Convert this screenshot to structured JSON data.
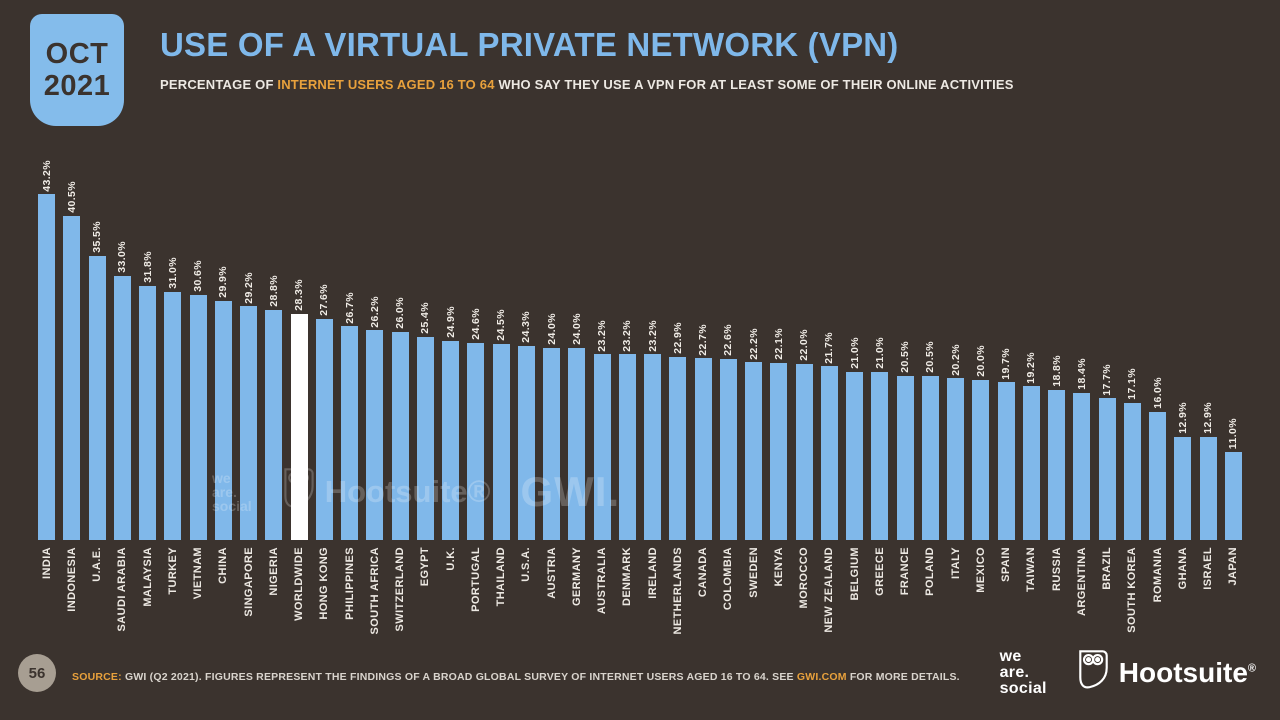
{
  "header": {
    "date_line1": "OCT",
    "date_line2": "2021",
    "title": "USE OF A VIRTUAL PRIVATE NETWORK (VPN)",
    "subtitle_prefix": "PERCENTAGE OF ",
    "subtitle_highlight": "INTERNET USERS AGED 16 TO 64",
    "subtitle_suffix": " WHO SAY THEY USE A VPN FOR AT LEAST SOME OF THEIR ONLINE ACTIVITIES"
  },
  "chart_data": {
    "type": "bar",
    "title": "USE OF A VIRTUAL PRIVATE NETWORK (VPN)",
    "xlabel": "",
    "ylabel": "Percentage of internet users aged 16 to 64",
    "ylim": [
      0,
      45
    ],
    "grid": false,
    "legend": "none",
    "value_suffix": "%",
    "bar_color": "#80B8EA",
    "highlight_category": "WORLDWIDE",
    "highlight_color": "#FFFFFF",
    "categories": [
      "INDIA",
      "INDONESIA",
      "U.A.E.",
      "SAUDI ARABIA",
      "MALAYSIA",
      "TURKEY",
      "VIETNAM",
      "CHINA",
      "SINGAPORE",
      "NIGERIA",
      "WORLDWIDE",
      "HONG KONG",
      "PHILIPPINES",
      "SOUTH AFRICA",
      "SWITZERLAND",
      "EGYPT",
      "U.K.",
      "PORTUGAL",
      "THAILAND",
      "U.S.A.",
      "AUSTRIA",
      "GERMANY",
      "AUSTRALIA",
      "DENMARK",
      "IRELAND",
      "NETHERLANDS",
      "CANADA",
      "COLOMBIA",
      "SWEDEN",
      "KENYA",
      "MOROCCO",
      "NEW ZEALAND",
      "BELGIUM",
      "GREECE",
      "FRANCE",
      "POLAND",
      "ITALY",
      "MEXICO",
      "SPAIN",
      "TAIWAN",
      "RUSSIA",
      "ARGENTINA",
      "BRAZIL",
      "SOUTH KOREA",
      "ROMANIA",
      "GHANA",
      "ISRAEL",
      "JAPAN"
    ],
    "values": [
      43.2,
      40.5,
      35.5,
      33.0,
      31.8,
      31.0,
      30.6,
      29.9,
      29.2,
      28.8,
      28.3,
      27.6,
      26.7,
      26.2,
      26.0,
      25.4,
      24.9,
      24.6,
      24.5,
      24.3,
      24.0,
      24.0,
      23.2,
      23.2,
      23.2,
      22.9,
      22.7,
      22.6,
      22.2,
      22.1,
      22.0,
      21.7,
      21.0,
      21.0,
      20.5,
      20.5,
      20.2,
      20.0,
      19.7,
      19.2,
      18.8,
      18.4,
      17.7,
      17.1,
      16.0,
      12.9,
      12.9,
      11.0
    ]
  },
  "watermark": {
    "we": "we",
    "are": "are.",
    "social": "social",
    "hootsuite": "Hootsuite®",
    "gwi": "GWI."
  },
  "footer": {
    "page_number": "56",
    "source_label": "SOURCE:",
    "source_text1": " GWI (Q2 2021). FIGURES REPRESENT THE FINDINGS OF A BROAD GLOBAL SURVEY OF INTERNET USERS AGED 16 TO 64. SEE ",
    "source_link": "GWI.COM",
    "source_text2": " FOR MORE DETAILS.",
    "was_line1": "we",
    "was_line2": "are.",
    "was_line3": "social",
    "hootsuite_label": "Hootsuite",
    "hootsuite_reg": "®"
  }
}
